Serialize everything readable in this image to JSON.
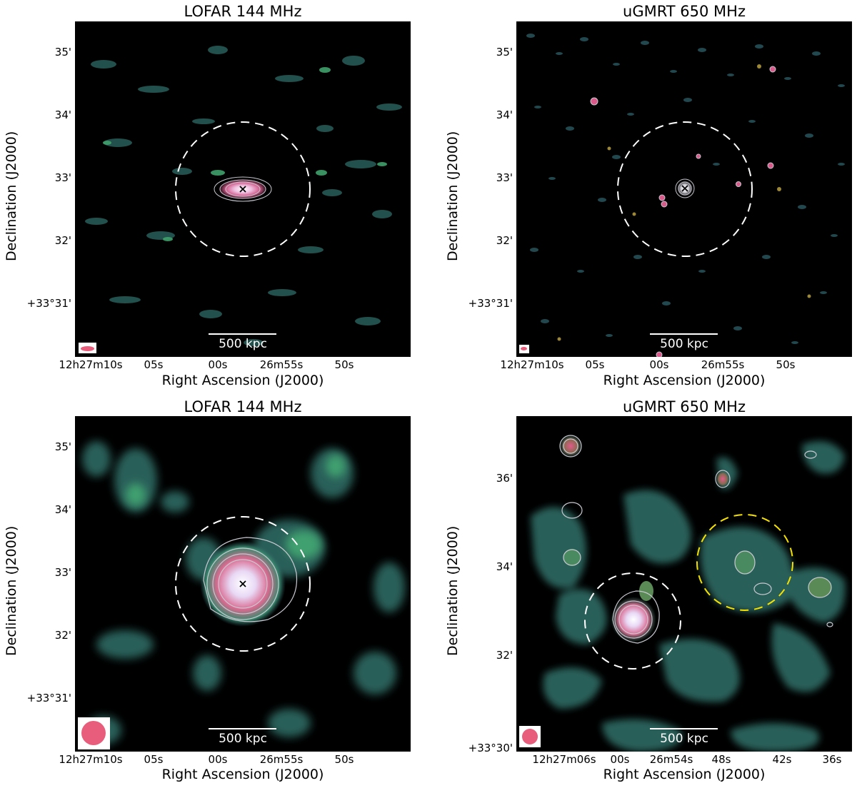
{
  "panels": [
    {
      "title": "LOFAR 144 MHz",
      "xlabel": "Right Ascension (J2000)",
      "ylabel": "Declination (J2000)",
      "yticks": [
        "35'",
        "34'",
        "33'",
        "32'",
        "+33°31'"
      ],
      "xticks": [
        "12h27m10s",
        "05s",
        "00s",
        "26m55s",
        "50s"
      ],
      "scalebar": "500 kpc"
    },
    {
      "title": "uGMRT 650 MHz",
      "xlabel": "Right Ascension (J2000)",
      "ylabel": "Declination (J2000)",
      "yticks": [
        "35'",
        "34'",
        "33'",
        "32'",
        "+33°31'"
      ],
      "xticks": [
        "12h27m10s",
        "05s",
        "00s",
        "26m55s",
        "50s"
      ],
      "scalebar": "500 kpc"
    },
    {
      "title": "LOFAR 144 MHz",
      "xlabel": "Right Ascension (J2000)",
      "ylabel": "Declination (J2000)",
      "yticks": [
        "35'",
        "34'",
        "33'",
        "32'",
        "+33°31'"
      ],
      "xticks": [
        "12h27m10s",
        "05s",
        "00s",
        "26m55s",
        "50s"
      ],
      "scalebar": "500 kpc"
    },
    {
      "title": "uGMRT 650 MHz",
      "xlabel": "Right Ascension (J2000)",
      "ylabel": "Declination (J2000)",
      "yticks": [
        "36'",
        "34'",
        "32'",
        "+33°30'"
      ],
      "xticks": [
        "12h27m06s",
        "00s",
        "26m54s",
        "48s",
        "42s",
        "36s"
      ],
      "scalebar": "500 kpc"
    }
  ],
  "colors": {
    "background": "#000000",
    "emission_low": "#2d5a5e",
    "emission_mid": "#3d8a6a",
    "emission_peak": "#d95a8a",
    "contour": "#c8c8d0",
    "circle": "#ffffff",
    "circle_highlight": "#f5e100",
    "beam": "#e85d7b"
  }
}
